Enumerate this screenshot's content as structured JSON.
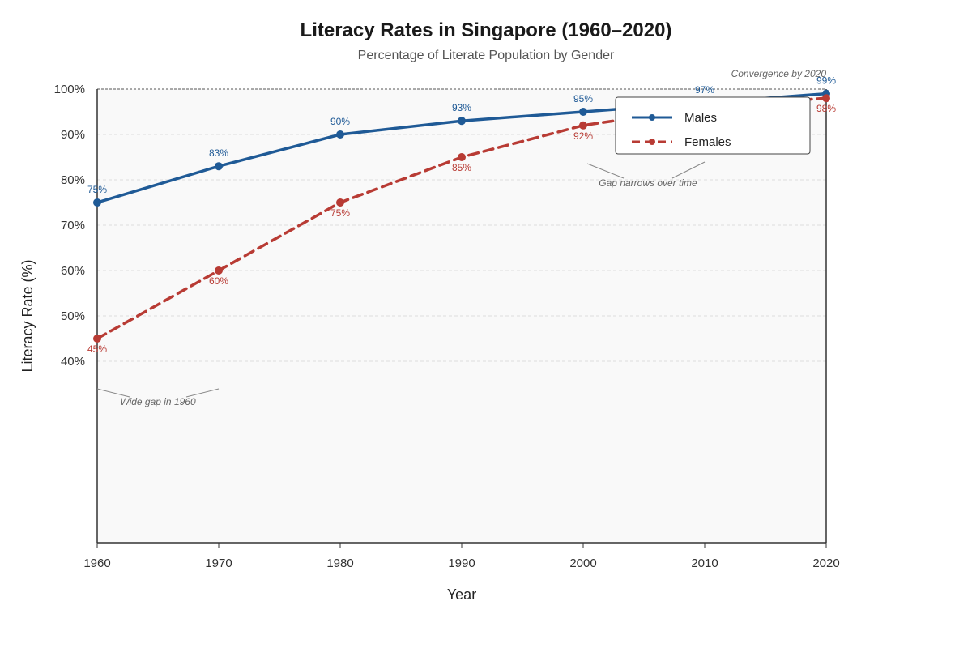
{
  "chart_data": {
    "type": "line",
    "title": "Literacy Rates in Singapore (1960–2020)",
    "subtitle": "Percentage of Literate Population by Gender",
    "xlabel": "Year",
    "ylabel": "Literacy Rate (%)",
    "x": [
      1960,
      1970,
      1980,
      1990,
      2000,
      2010,
      2020
    ],
    "x_ticks": [
      "1960",
      "1970",
      "1980",
      "1990",
      "2000",
      "2010",
      "2020"
    ],
    "y_ticks": [
      "40%",
      "50%",
      "60%",
      "70%",
      "80%",
      "90%",
      "100%"
    ],
    "grid": true,
    "legend_position": "top-right",
    "series": [
      {
        "name": "Males",
        "color": "#1f5a96",
        "dash": "solid",
        "values": [
          75,
          83,
          90,
          93,
          95,
          97,
          99
        ],
        "labels": [
          "75%",
          "83%",
          "90%",
          "93%",
          "95%",
          "97%",
          "99%"
        ]
      },
      {
        "name": "Females",
        "color": "#b83b34",
        "dash": "dashed",
        "values": [
          45,
          60,
          75,
          85,
          92,
          96,
          98
        ],
        "labels": [
          "45%",
          "60%",
          "75%",
          "85%",
          "92%",
          "96%",
          "98%"
        ]
      }
    ],
    "annotations": [
      "Convergence by 2020",
      "Gap narrows over time",
      "Wide gap in 1960"
    ]
  }
}
